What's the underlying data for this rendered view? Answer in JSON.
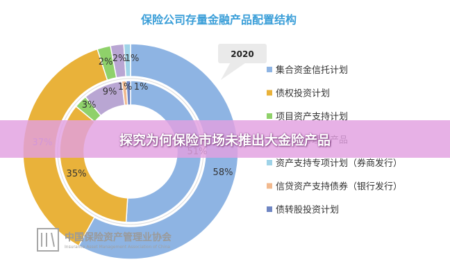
{
  "banner": {
    "text": "探究为何保险市场未推出大金险产品"
  },
  "callout": {
    "year": "2020"
  },
  "logo": {
    "cn": "中国保险资产管理业协会",
    "en": "Insurance Asset Management Association of China"
  },
  "chart_data": {
    "type": "donut",
    "title": "保险公司存量金融产品配置结构",
    "legend_position": "right",
    "categories": [
      "集合资金信托计划",
      "债权投资计划",
      "项目资产支持计划",
      "商业银行理财产品",
      "资产支持专项计划（券商发行）",
      "信贷资产支持债券（银行发行）",
      "债转股投资计划"
    ],
    "colors": [
      "#8eb4e3",
      "#e9b23a",
      "#8fd16a",
      "#b9a6d3",
      "#9fd3e8",
      "#f2b98e",
      "#6f86c3"
    ],
    "series": [
      {
        "ring": "outer",
        "values": [
          58,
          37,
          2,
          2,
          1,
          0,
          0
        ],
        "labels": [
          "58%",
          "37%",
          "2%",
          "2%",
          "1%",
          "",
          ""
        ]
      },
      {
        "ring": "inner",
        "values": [
          51,
          35,
          3,
          9,
          0,
          1,
          1
        ],
        "labels": [
          "51%",
          "35%",
          "3%",
          "9%",
          "",
          "1%",
          "1%"
        ]
      }
    ]
  }
}
